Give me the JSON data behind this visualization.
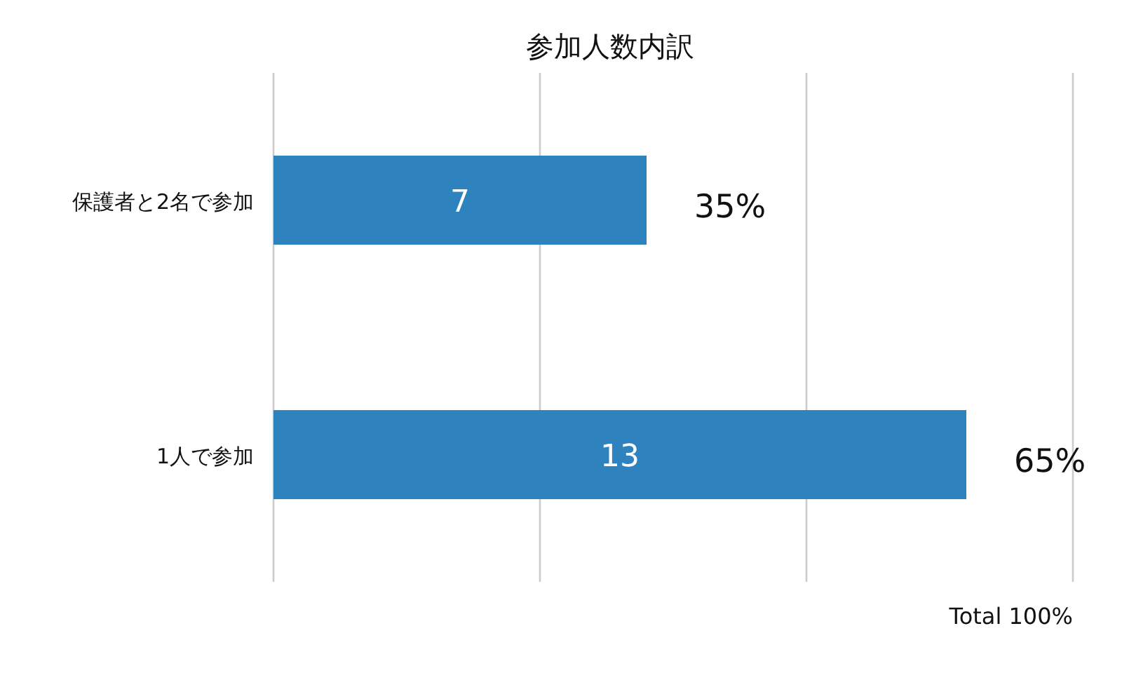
{
  "chart_data": {
    "type": "bar",
    "orientation": "horizontal",
    "title": "参加人数内訳",
    "categories": [
      "保護者と2名で参加",
      "1人で参加"
    ],
    "values": [
      7,
      13
    ],
    "color": "#2e82be",
    "data_labels": true,
    "xlim": [
      0,
      15
    ],
    "xticks": [
      {
        "value": 0,
        "label": null
      },
      {
        "value": 5,
        "label": null
      },
      {
        "value": 10,
        "label": null
      },
      {
        "value": 15,
        "label": null
      }
    ],
    "grid": "x",
    "tick_labels": "y",
    "annotations": [
      {
        "text": "35%",
        "x": 7,
        "y": "保護者と2名で参加"
      },
      {
        "text": "65%",
        "x": 13,
        "y": "1人で参加"
      },
      "Total 100%"
    ]
  }
}
